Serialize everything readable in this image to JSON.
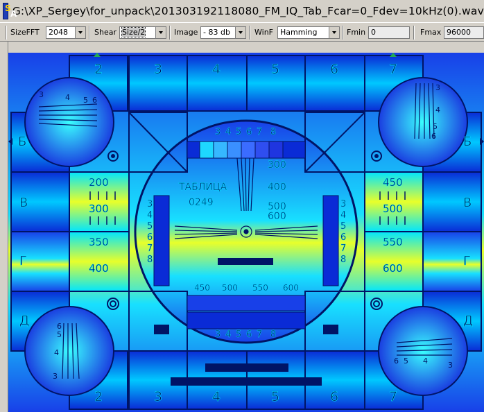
{
  "window": {
    "title": "G:\\XP_Sergey\\for_unpack\\201303192118080_FM_IQ_Tab_Fcar=0_Fdev=10kHz(0).wav",
    "icon": "spectrum-analyzer-icon",
    "icon_s": "S",
    "icon_a": "A"
  },
  "toolbar": {
    "sizefft": {
      "label": "SizeFFT",
      "value": "2048"
    },
    "shear": {
      "label": "Shear",
      "value": "Size/2"
    },
    "image": {
      "label": "Image",
      "value": "- 83 db"
    },
    "winf": {
      "label": "WinF",
      "value": "Hamming"
    },
    "fmin": {
      "label": "Fmin",
      "value": "0"
    },
    "fmax": {
      "label": "Fmax",
      "value": "96000"
    }
  },
  "testcard": {
    "top_numbers": [
      "2",
      "3",
      "4",
      "5",
      "6",
      "7"
    ],
    "bottom_numbers": [
      "2",
      "3",
      "4",
      "5",
      "6",
      "7"
    ],
    "left_letters": [
      "Б",
      "В",
      "Г",
      "Д"
    ],
    "right_letters": [
      "Б",
      "В",
      "Г",
      "Д"
    ],
    "table_label": "ТАБЛИЦА",
    "table_number": "0249",
    "center_top_scale": [
      "3",
      "4",
      "5",
      "6",
      "7",
      "8"
    ],
    "center_bottom_scale": [
      "3",
      "4",
      "5",
      "6",
      "7",
      "8"
    ],
    "center_side_scale": [
      "3",
      "4",
      "5",
      "6",
      "7",
      "8"
    ],
    "center_right_labels": [
      "300",
      "400",
      "500",
      "600"
    ],
    "center_bottom_labels": [
      "450",
      "500",
      "550",
      "600"
    ],
    "left_box_labels": [
      "200",
      "300",
      "350",
      "400"
    ],
    "right_box_labels": [
      "450",
      "500",
      "550",
      "600"
    ],
    "tl_circle_nums": [
      "3",
      "4",
      "5",
      "6"
    ],
    "tr_circle_nums": [
      "3",
      "4",
      "5",
      "6"
    ],
    "bl_circle_nums": [
      "6",
      "5",
      "4",
      "3"
    ],
    "br_circle_nums": [
      "6",
      "5",
      "4",
      "3"
    ]
  },
  "colors": {
    "cyan": "#00e5ff",
    "blue": "#0a2bd6",
    "yellow": "#e8ff2a",
    "navy": "#001466"
  }
}
